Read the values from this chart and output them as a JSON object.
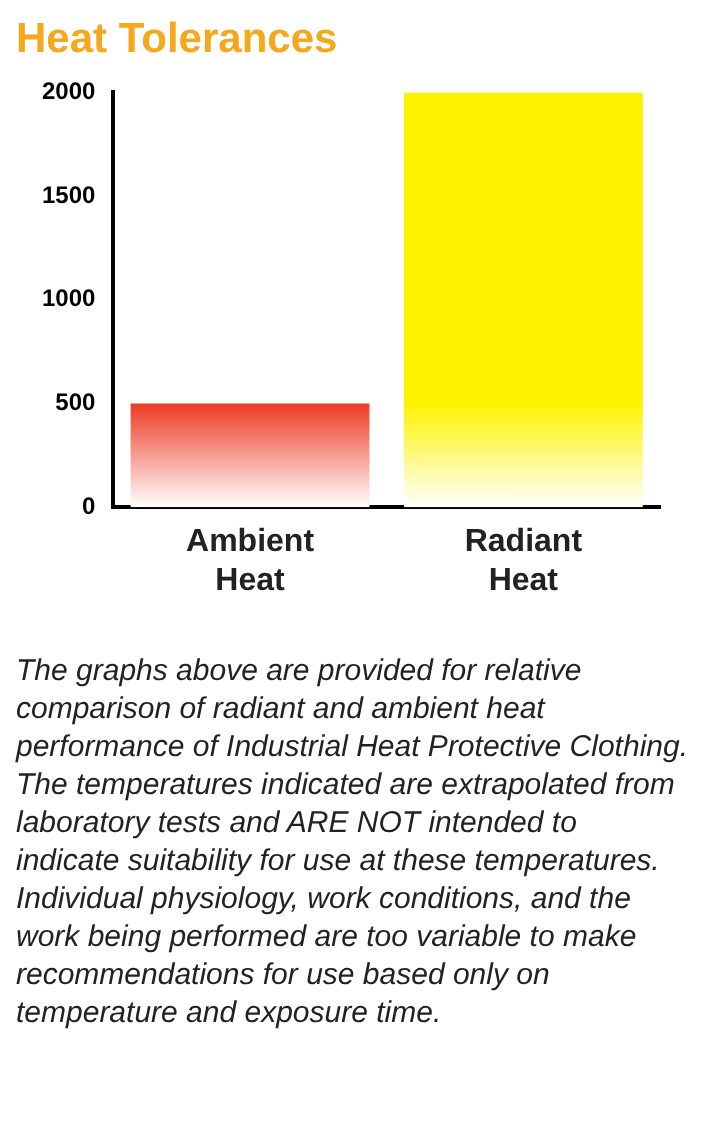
{
  "chart_data": {
    "type": "bar",
    "title": "Heat Tolerances",
    "categories": [
      "Ambient Heat",
      "Radiant Heat"
    ],
    "values": [
      500,
      2000
    ],
    "colors": [
      "#ee3a24",
      "#fff200"
    ],
    "ylim": [
      0,
      2000
    ],
    "yticks": [
      0,
      500,
      1000,
      1500,
      2000
    ],
    "grid": false,
    "legend": false,
    "annotations": [
      "The graphs above are provided for relative comparison of radiant and ambient heat performance of Industrial Heat Protective Clothing.  The temperatures indicated are extrapolated from laboratory tests and ARE NOT intended to indicate suitability for use at these temperatures. Individual physiology, work conditions, and the work being performed are too variable to make recommendations for use based only on temperature and exposure time."
    ]
  }
}
